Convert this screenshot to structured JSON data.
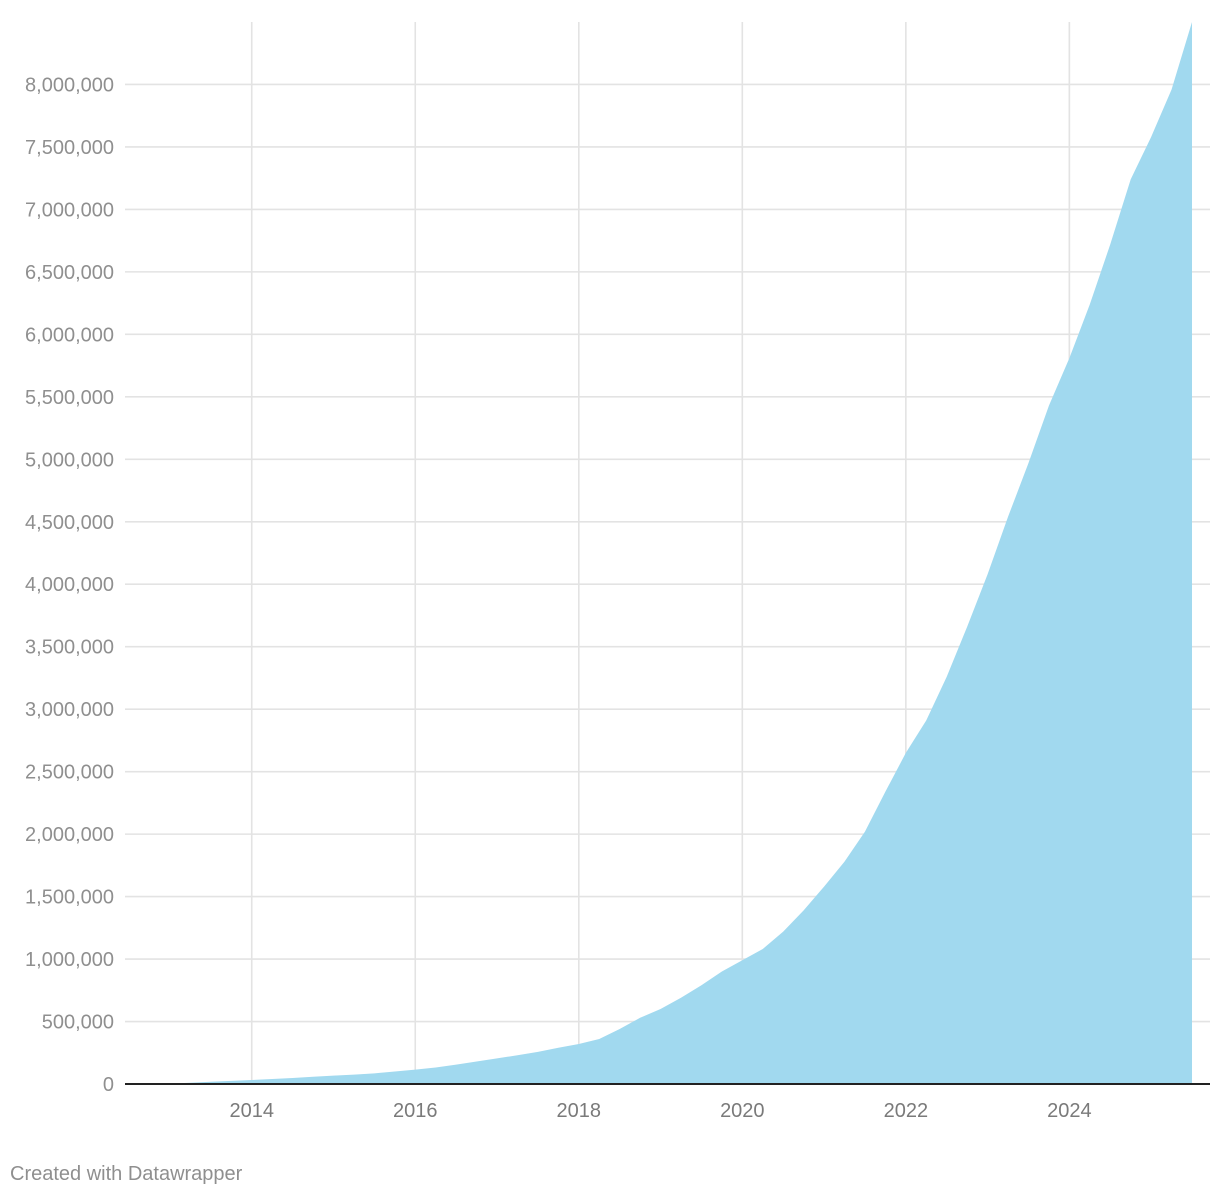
{
  "chart_data": {
    "type": "area",
    "title": "",
    "xlabel": "",
    "ylabel": "",
    "xlim": [
      2012.45,
      2025.72
    ],
    "ylim": [
      0,
      8500000
    ],
    "y_ticks": [
      0,
      500000,
      1000000,
      1500000,
      2000000,
      2500000,
      3000000,
      3500000,
      4000000,
      4500000,
      5000000,
      5500000,
      6000000,
      6500000,
      7000000,
      7500000,
      8000000
    ],
    "y_tick_labels": [
      "0",
      "500,000",
      "1,000,000",
      "1,500,000",
      "2,000,000",
      "2,500,000",
      "3,000,000",
      "3,500,000",
      "4,000,000",
      "4,500,000",
      "5,000,000",
      "5,500,000",
      "6,000,000",
      "6,500,000",
      "7,000,000",
      "7,500,000",
      "8,000,000"
    ],
    "x_ticks": [
      2014,
      2016,
      2018,
      2020,
      2022,
      2024
    ],
    "x_tick_labels": [
      "2014",
      "2016",
      "2018",
      "2020",
      "2022",
      "2024"
    ],
    "grid": true,
    "legend": "none",
    "fill_color": "#a1d9ef",
    "series": [
      {
        "x": [
          2013.0,
          2013.25,
          2013.5,
          2013.75,
          2014.0,
          2014.25,
          2014.5,
          2014.75,
          2015.0,
          2015.25,
          2015.5,
          2015.75,
          2016.0,
          2016.25,
          2016.5,
          2016.75,
          2017.0,
          2017.25,
          2017.5,
          2017.75,
          2018.0,
          2018.25,
          2018.5,
          2018.75,
          2019.0,
          2019.25,
          2019.5,
          2019.75,
          2020.0,
          2020.25,
          2020.5,
          2020.75,
          2021.0,
          2021.25,
          2021.5,
          2021.75,
          2022.0,
          2022.25,
          2022.5,
          2022.75,
          2023.0,
          2023.25,
          2023.5,
          2023.75,
          2024.0,
          2024.25,
          2024.5,
          2024.75,
          2025.0,
          2025.25,
          2025.5
        ],
        "values": [
          3000,
          10000,
          18000,
          25000,
          32000,
          40000,
          48000,
          58000,
          67000,
          75000,
          85000,
          100000,
          115000,
          132000,
          155000,
          180000,
          205000,
          230000,
          257000,
          290000,
          320000,
          360000,
          440000,
          530000,
          600000,
          690000,
          790000,
          900000,
          990000,
          1080000,
          1220000,
          1390000,
          1580000,
          1780000,
          2020000,
          2340000,
          2650000,
          2910000,
          3260000,
          3660000,
          4080000,
          4540000,
          4970000,
          5430000,
          5810000,
          6240000,
          6720000,
          7240000,
          7580000,
          7960000,
          8500000
        ]
      }
    ]
  },
  "footer": {
    "credit": "Created with Datawrapper"
  }
}
